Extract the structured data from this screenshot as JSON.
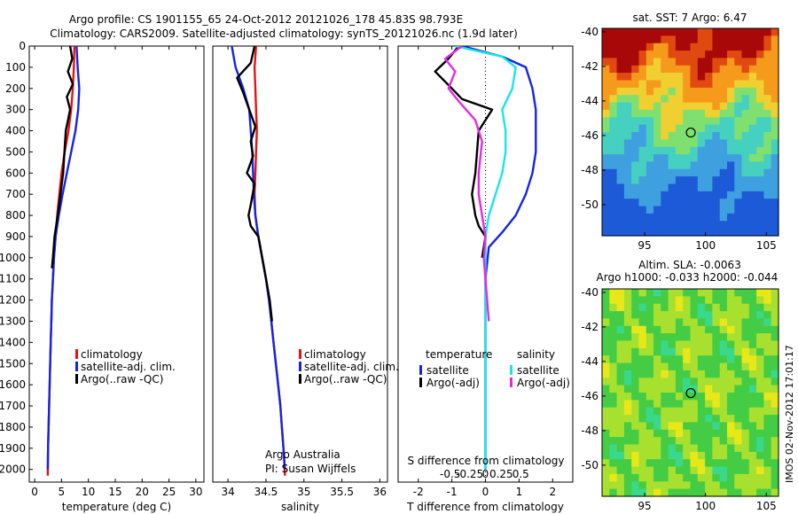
{
  "header": {
    "line1": "Argo profile: CS 1901155_65 24-Oct-2012 20121026_178 45.83S 98.793E",
    "line2": "Climatology: CARS2009. Satellite-adjusted climatology: synTS_20121026.nc (1.9d later)"
  },
  "credits": {
    "group": "Argo Australia",
    "pi": "PI: Susan Wijffels",
    "stamp": "IMOS 02-Nov-2012 17:01:17"
  },
  "colors": {
    "climatology": "#e81010",
    "satellite": "#1424e6",
    "argo": "#000000",
    "satellite_s": "#18e6e6",
    "argo_s": "#e628e6"
  },
  "chart_data": [
    {
      "type": "line",
      "id": "temperature",
      "xlabel": "temperature (deg C)",
      "xlim": [
        -1,
        31.5
      ],
      "ylim": [
        2060,
        0
      ],
      "xticks": [
        0,
        5,
        10,
        15,
        20,
        25,
        30
      ],
      "yticks": [
        0,
        100,
        200,
        300,
        400,
        500,
        600,
        700,
        800,
        900,
        1000,
        1100,
        1200,
        1300,
        1400,
        1500,
        1600,
        1700,
        1800,
        1900,
        2000
      ],
      "legend": [
        "climatology",
        "satellite-adj. clim.",
        "Argo(..raw -QC)"
      ],
      "series": [
        {
          "name": "climatology",
          "color": "#e81010",
          "x": [
            7.4,
            7.3,
            7.1,
            6.8,
            6.3,
            5.6,
            5.0,
            4.6,
            4.2,
            3.9,
            3.6,
            3.4,
            3.2,
            3.1,
            3.0,
            2.9,
            2.8,
            2.7,
            2.6,
            2.5,
            2.45
          ],
          "y": [
            0,
            100,
            200,
            300,
            400,
            500,
            600,
            700,
            800,
            900,
            1000,
            1100,
            1200,
            1300,
            1400,
            1500,
            1600,
            1700,
            1800,
            1900,
            2030
          ]
        },
        {
          "name": "satellite-adj. clim.",
          "color": "#1424e6",
          "x": [
            7.8,
            8.0,
            8.3,
            8.1,
            7.6,
            6.8,
            6.0,
            5.2,
            4.5,
            3.9,
            3.6,
            3.4,
            3.2,
            3.1,
            3.0,
            2.9,
            2.8,
            2.7,
            2.6,
            2.5,
            2.45
          ],
          "y": [
            0,
            100,
            200,
            300,
            400,
            500,
            600,
            700,
            800,
            900,
            1000,
            1100,
            1200,
            1300,
            1400,
            1500,
            1600,
            1700,
            1800,
            1900,
            2000
          ]
        },
        {
          "name": "Argo(..raw -QC)",
          "color": "#000000",
          "x": [
            6.6,
            7.0,
            6.2,
            7.1,
            6.0,
            6.6,
            5.8,
            5.3,
            4.8,
            4.3,
            3.7,
            3.4,
            3.2
          ],
          "y": [
            0,
            60,
            120,
            180,
            240,
            300,
            400,
            600,
            700,
            800,
            900,
            1000,
            1050
          ]
        }
      ]
    },
    {
      "type": "line",
      "id": "salinity",
      "xlabel": "salinity",
      "xlim": [
        33.8,
        36.1
      ],
      "ylim": [
        2060,
        0
      ],
      "xticks": [
        34,
        34.5,
        35,
        35.5,
        36
      ],
      "legend": [
        "climatology",
        "satellite-adj. clim.",
        "Argo(..raw -QC)"
      ],
      "series": [
        {
          "name": "climatology",
          "color": "#e81010",
          "x": [
            34.37,
            34.35,
            34.36,
            34.37,
            34.38,
            34.37,
            34.36,
            34.35,
            34.36,
            34.4,
            34.45,
            34.5,
            34.54,
            34.57,
            34.6,
            34.63,
            34.66,
            34.69,
            34.71,
            34.73,
            34.75
          ],
          "y": [
            0,
            100,
            200,
            300,
            400,
            500,
            600,
            700,
            800,
            900,
            1000,
            1100,
            1200,
            1300,
            1400,
            1500,
            1600,
            1700,
            1800,
            1900,
            2030
          ]
        },
        {
          "name": "satellite-adj. clim.",
          "color": "#1424e6",
          "x": [
            34.05,
            34.1,
            34.2,
            34.28,
            34.3,
            34.32,
            34.33,
            34.34,
            34.36,
            34.4,
            34.45,
            34.5,
            34.54,
            34.57,
            34.6,
            34.63,
            34.66,
            34.69,
            34.71,
            34.73,
            34.75
          ],
          "y": [
            0,
            100,
            200,
            300,
            400,
            500,
            600,
            700,
            800,
            900,
            1000,
            1100,
            1200,
            1300,
            1400,
            1500,
            1600,
            1700,
            1800,
            1900,
            2000
          ]
        },
        {
          "name": "Argo(..raw -QC)",
          "color": "#000000",
          "x": [
            34.35,
            34.3,
            34.12,
            34.2,
            34.28,
            34.36,
            34.3,
            34.33,
            34.25,
            34.35,
            34.3,
            34.27,
            34.3,
            34.4,
            34.45,
            34.5,
            34.55,
            34.58
          ],
          "y": [
            0,
            80,
            150,
            220,
            300,
            380,
            450,
            520,
            600,
            650,
            750,
            800,
            850,
            900,
            1000,
            1100,
            1200,
            1300
          ]
        }
      ]
    },
    {
      "type": "line",
      "id": "difference",
      "xlabel": "T difference from climatology",
      "x2label": "S difference from climatology",
      "xlim": [
        -2.6,
        2.6
      ],
      "ylim": [
        2060,
        0
      ],
      "xticks": [
        -2,
        -1,
        0,
        1,
        2
      ],
      "xticklabels": [
        "-2",
        "-1",
        "0",
        "1",
        "2"
      ],
      "x2ticks": [
        -1.05,
        -0.47,
        0,
        0.47,
        1.05
      ],
      "x2ticklabels": [
        "-0.5",
        "-0.25",
        "0",
        "0.25",
        "0.5"
      ],
      "legend_headers": [
        "temperature",
        "salinity"
      ],
      "legend": [
        "satellite",
        "Argo(-adj)",
        "satellite",
        "Argo(-adj)"
      ],
      "series": [
        {
          "name": "satellite (temperature)",
          "color": "#1424e6",
          "x": [
            -0.7,
            0.5,
            1.2,
            1.4,
            1.5,
            1.5,
            1.5,
            1.4,
            1.2,
            0.9,
            0.5,
            0.1,
            0.0,
            0.0,
            0.0,
            0.0
          ],
          "y": [
            0,
            50,
            100,
            200,
            300,
            400,
            500,
            600,
            700,
            800,
            880,
            950,
            1100,
            1400,
            1700,
            2000
          ]
        },
        {
          "name": "Argo(-adj) (temperature)",
          "color": "#000000",
          "x": [
            -0.8,
            -1.1,
            -1.5,
            -1.0,
            -0.7,
            0.2,
            -0.2,
            -0.3,
            -0.4,
            -0.3,
            -0.2,
            0.0,
            -0.1
          ],
          "y": [
            0,
            60,
            120,
            200,
            250,
            300,
            400,
            600,
            700,
            800,
            850,
            900,
            1000
          ]
        },
        {
          "name": "satellite (salinity)",
          "color": "#18e6e6",
          "x": [
            -0.9,
            0.5,
            0.9,
            0.8,
            0.5,
            0.6,
            0.6,
            0.5,
            0.3,
            0.1,
            0.0,
            0.0,
            0.0,
            0.0
          ],
          "y": [
            0,
            50,
            100,
            200,
            300,
            400,
            500,
            600,
            700,
            800,
            900,
            1100,
            1500,
            2000
          ]
        },
        {
          "name": "Argo(-adj) (salinity)",
          "color": "#e628e6",
          "x": [
            -0.7,
            -1.2,
            -0.9,
            -1.1,
            -0.8,
            -0.3,
            -0.1,
            -0.2,
            -0.2,
            -0.1,
            0.0,
            -0.05,
            0.1
          ],
          "y": [
            0,
            60,
            120,
            200,
            260,
            350,
            450,
            600,
            700,
            800,
            900,
            1000,
            1300
          ]
        }
      ]
    },
    {
      "type": "heatmap",
      "id": "sst_map",
      "title": "sat. SST: 7 Argo: 6.47",
      "xlim": [
        91.5,
        106
      ],
      "ylim": [
        -51.8,
        -39.8
      ],
      "xticks": [
        95,
        100,
        105
      ],
      "yticks": [
        -40,
        -42,
        -44,
        -46,
        -48,
        -50
      ],
      "marker": {
        "lon": 98.793,
        "lat": -45.83
      }
    },
    {
      "type": "heatmap",
      "id": "sla_map",
      "title": "Altim. SLA: -0.0063",
      "subtitle": "Argo h1000: -0.033 h2000: -0.044",
      "xlim": [
        91.5,
        106
      ],
      "ylim": [
        -51.8,
        -39.8
      ],
      "xticks": [
        95,
        100,
        105
      ],
      "yticks": [
        -40,
        -42,
        -44,
        -46,
        -48,
        -50
      ],
      "marker": {
        "lon": 98.793,
        "lat": -45.83
      }
    }
  ]
}
